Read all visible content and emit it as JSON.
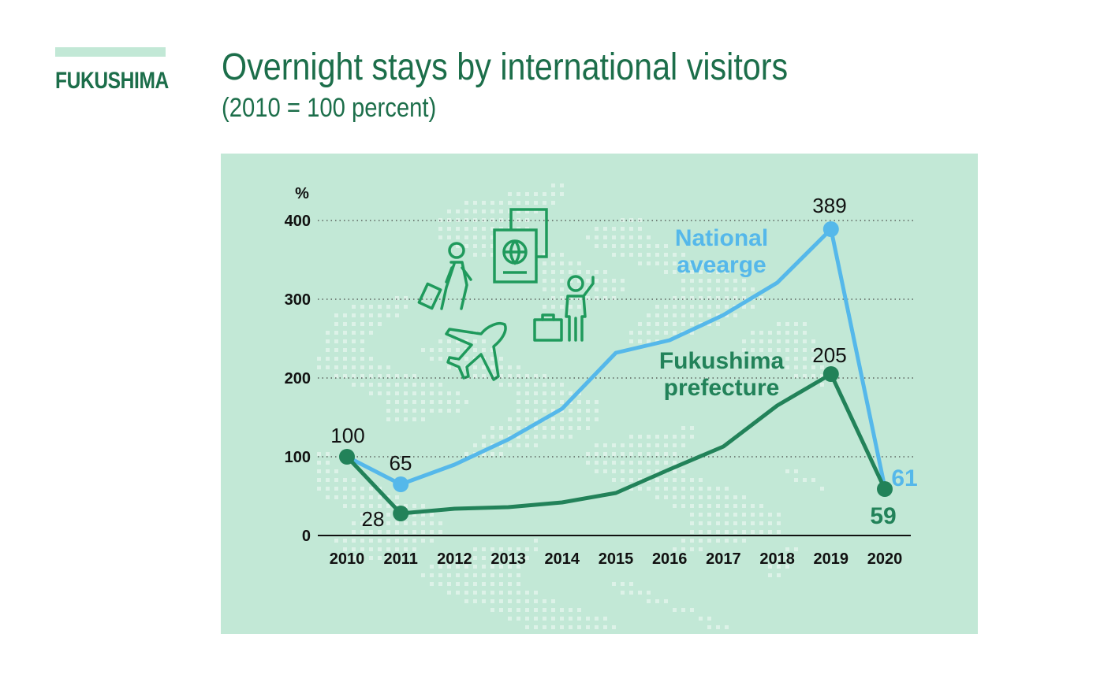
{
  "header": {
    "region": "FUKUSHIMA",
    "title": "Overnight stays by international visitors",
    "subtitle": "(2010 = 100 percent)"
  },
  "colors": {
    "panel": "#c2e8d6",
    "national": "#55b8ea",
    "fukushima": "#228259",
    "text_green": "#1c6e4a"
  },
  "icons": [
    "traveler-with-suitcase-icon",
    "passport-icon",
    "airplane-icon",
    "waving-traveler-with-luggage-icon",
    "globe-background-icon"
  ],
  "chart_data": {
    "type": "line",
    "unit_label": "%",
    "x": [
      "2010",
      "2011",
      "2012",
      "2013",
      "2014",
      "2015",
      "2016",
      "2017",
      "2018",
      "2019",
      "2020"
    ],
    "ylim": [
      0,
      400
    ],
    "yticks": [
      0,
      100,
      200,
      300,
      400
    ],
    "grid": "horizontal dotted",
    "series": [
      {
        "name": "National\navearge",
        "values": [
          100,
          65,
          90,
          122,
          161,
          232,
          248,
          280,
          321,
          389,
          61
        ],
        "labels": {
          "1": "65",
          "9": "389",
          "10": "61"
        },
        "markers": [
          1,
          9
        ]
      },
      {
        "name": "Fukushima\nprefecture",
        "values": [
          100,
          28,
          34,
          36,
          42,
          54,
          84,
          113,
          165,
          205,
          59
        ],
        "labels": {
          "0": "100",
          "1": "28",
          "9": "205",
          "10": "59"
        },
        "markers": [
          0,
          1,
          9,
          10
        ]
      }
    ]
  }
}
